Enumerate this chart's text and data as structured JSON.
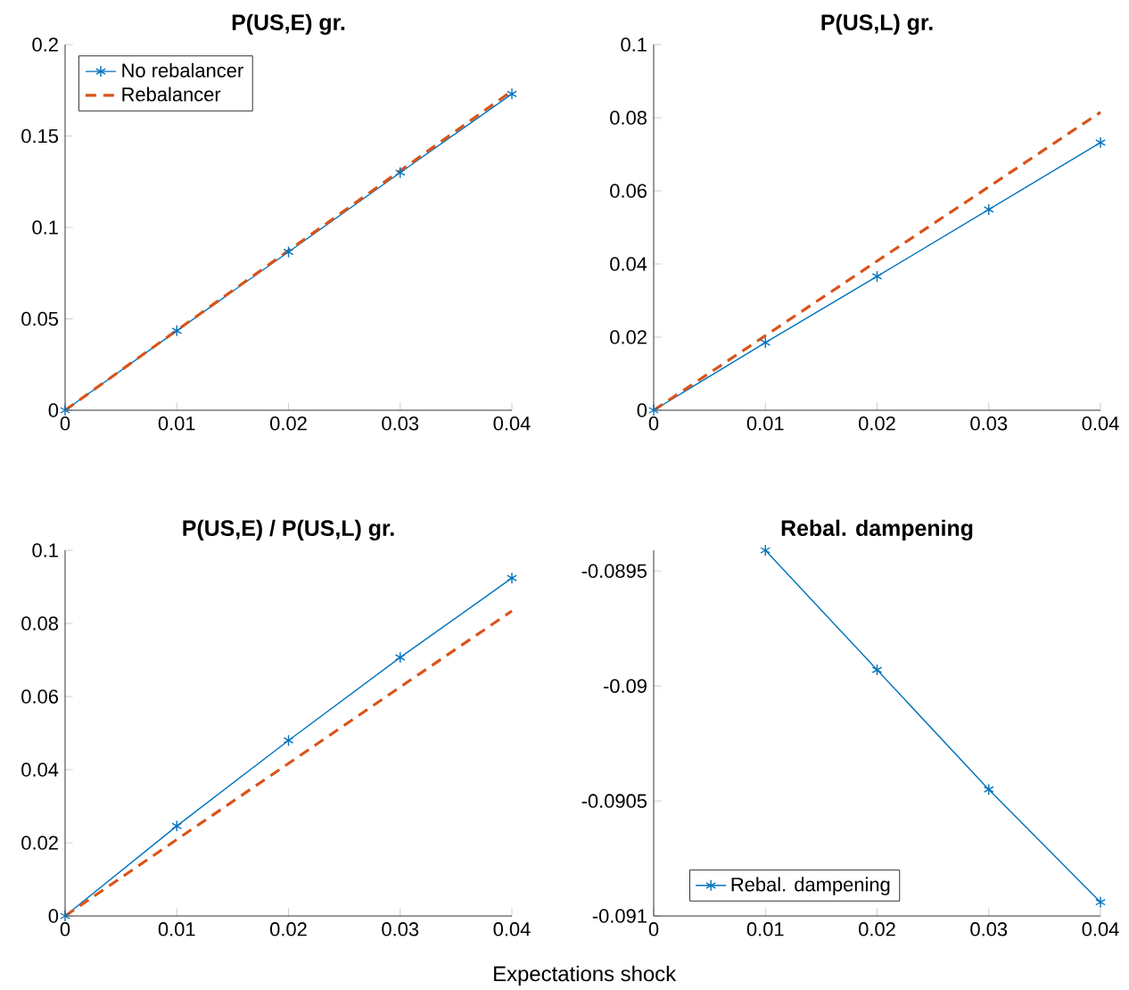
{
  "chart_data": [
    {
      "type": "line",
      "title": "P(US,E) gr.",
      "x": [
        0,
        0.01,
        0.02,
        0.03,
        0.04
      ],
      "xlim": [
        0,
        0.04
      ],
      "xticks": [
        0,
        0.01,
        0.02,
        0.03,
        0.04
      ],
      "ylim": [
        0,
        0.2
      ],
      "yticks": [
        0,
        0.05,
        0.1,
        0.15,
        0.2
      ],
      "legend": "top left",
      "series": [
        {
          "name": "No rebalancer",
          "color": "#0072bd",
          "marker": "cross",
          "line_style": "solid",
          "values": [
            0,
            0.0435,
            0.0866,
            0.13,
            0.173
          ]
        },
        {
          "name": "Rebalancer",
          "color": "#d95319",
          "marker": "none",
          "line_style": "dashed",
          "values": [
            0,
            0.0437,
            0.0873,
            0.131,
            0.1746
          ]
        }
      ]
    },
    {
      "type": "line",
      "title": "P(US,L) gr.",
      "x": [
        0,
        0.01,
        0.02,
        0.03,
        0.04
      ],
      "xlim": [
        0,
        0.04
      ],
      "xticks": [
        0,
        0.01,
        0.02,
        0.03,
        0.04
      ],
      "ylim": [
        0,
        0.1
      ],
      "yticks": [
        0,
        0.02,
        0.04,
        0.06,
        0.08,
        0.1
      ],
      "series": [
        {
          "color": "#0072bd",
          "marker": "cross",
          "line_style": "solid",
          "values": [
            0,
            0.0185,
            0.0366,
            0.0549,
            0.0732
          ]
        },
        {
          "color": "#d95319",
          "marker": "none",
          "line_style": "dashed",
          "values": [
            0,
            0.0204,
            0.0408,
            0.0611,
            0.0815
          ]
        }
      ]
    },
    {
      "type": "line",
      "title": "P(US,E) / P(US,L) gr.",
      "xlabel": "Expectations shock",
      "x": [
        0,
        0.01,
        0.02,
        0.03,
        0.04
      ],
      "xlim": [
        0,
        0.04
      ],
      "xticks": [
        0,
        0.01,
        0.02,
        0.03,
        0.04
      ],
      "ylim": [
        0,
        0.1
      ],
      "yticks": [
        0,
        0.02,
        0.04,
        0.06,
        0.08,
        0.1
      ],
      "series": [
        {
          "color": "#0072bd",
          "marker": "cross",
          "line_style": "solid",
          "values": [
            0,
            0.0246,
            0.048,
            0.0707,
            0.0924
          ]
        },
        {
          "color": "#d95319",
          "marker": "none",
          "line_style": "dashed",
          "values": [
            0,
            0.0209,
            0.0417,
            0.0626,
            0.0834
          ]
        }
      ]
    },
    {
      "type": "line",
      "title": "Rebal. dampening",
      "x": [
        0.01,
        0.02,
        0.03,
        0.04
      ],
      "xlim": [
        0,
        0.04
      ],
      "xticks": [
        0,
        0.01,
        0.02,
        0.03,
        0.04
      ],
      "ylim": [
        -0.091,
        -0.08941
      ],
      "yticks": [
        -0.091,
        -0.0905,
        -0.09,
        -0.0895
      ],
      "legend": "bottom left",
      "series": [
        {
          "name": "Rebal. dampening",
          "color": "#0072bd",
          "marker": "cross",
          "line_style": "solid",
          "values": [
            -0.08941,
            -0.08993,
            -0.09045,
            -0.09094
          ]
        }
      ]
    }
  ]
}
